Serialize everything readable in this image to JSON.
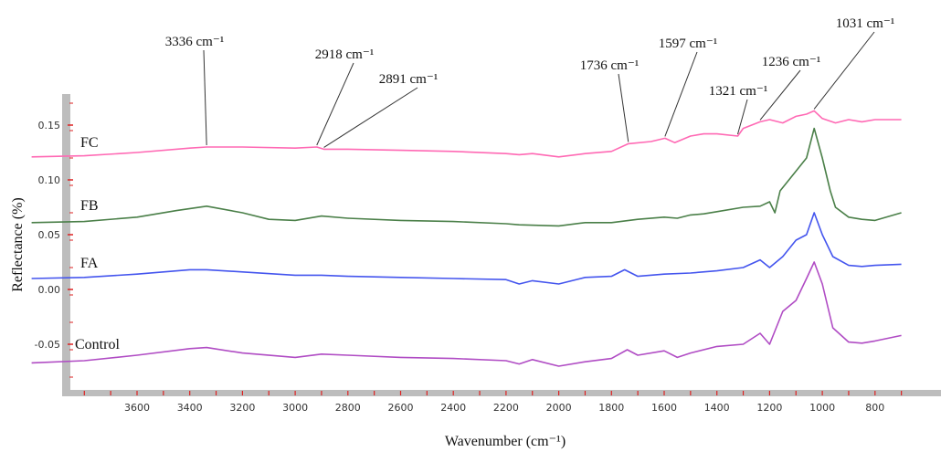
{
  "chart_data": {
    "type": "line",
    "xlabel": "Wavenumber (cm⁻¹)",
    "ylabel": "Reflectance (%)",
    "xlim": [
      4000,
      700
    ],
    "x_reversed": true,
    "ylim": [
      -0.09,
      0.19
    ],
    "xticks": [
      "3600",
      "3400",
      "3200",
      "3000",
      "2800",
      "2600",
      "2400",
      "2200",
      "2000",
      "1800",
      "1600",
      "1400",
      "1200",
      "1000",
      "800"
    ],
    "yticks": [
      "0.15",
      "0.10",
      "0.05",
      "0.00",
      "-0.05"
    ],
    "grid": false,
    "series": [
      {
        "name": "FC",
        "color": "#ff69b4",
        "points": [
          [
            4000,
            0.121
          ],
          [
            3800,
            0.122
          ],
          [
            3600,
            0.125
          ],
          [
            3400,
            0.129
          ],
          [
            3336,
            0.13
          ],
          [
            3200,
            0.13
          ],
          [
            3000,
            0.129
          ],
          [
            2918,
            0.13
          ],
          [
            2891,
            0.128
          ],
          [
            2800,
            0.128
          ],
          [
            2600,
            0.127
          ],
          [
            2400,
            0.126
          ],
          [
            2200,
            0.124
          ],
          [
            2150,
            0.123
          ],
          [
            2100,
            0.124
          ],
          [
            2000,
            0.121
          ],
          [
            1900,
            0.124
          ],
          [
            1800,
            0.126
          ],
          [
            1736,
            0.133
          ],
          [
            1650,
            0.135
          ],
          [
            1597,
            0.138
          ],
          [
            1560,
            0.134
          ],
          [
            1500,
            0.14
          ],
          [
            1450,
            0.142
          ],
          [
            1400,
            0.142
          ],
          [
            1321,
            0.14
          ],
          [
            1300,
            0.147
          ],
          [
            1236,
            0.153
          ],
          [
            1200,
            0.155
          ],
          [
            1150,
            0.152
          ],
          [
            1100,
            0.158
          ],
          [
            1060,
            0.16
          ],
          [
            1031,
            0.163
          ],
          [
            1000,
            0.156
          ],
          [
            950,
            0.152
          ],
          [
            900,
            0.155
          ],
          [
            850,
            0.153
          ],
          [
            800,
            0.155
          ],
          [
            700,
            0.155
          ]
        ]
      },
      {
        "name": "FB",
        "color": "#4a7f48",
        "points": [
          [
            4000,
            0.061
          ],
          [
            3800,
            0.062
          ],
          [
            3600,
            0.066
          ],
          [
            3450,
            0.072
          ],
          [
            3336,
            0.076
          ],
          [
            3200,
            0.07
          ],
          [
            3100,
            0.064
          ],
          [
            3000,
            0.063
          ],
          [
            2900,
            0.067
          ],
          [
            2800,
            0.065
          ],
          [
            2600,
            0.063
          ],
          [
            2400,
            0.062
          ],
          [
            2200,
            0.06
          ],
          [
            2150,
            0.059
          ],
          [
            2000,
            0.058
          ],
          [
            1900,
            0.061
          ],
          [
            1800,
            0.061
          ],
          [
            1700,
            0.064
          ],
          [
            1600,
            0.066
          ],
          [
            1550,
            0.065
          ],
          [
            1500,
            0.068
          ],
          [
            1450,
            0.069
          ],
          [
            1400,
            0.071
          ],
          [
            1300,
            0.075
          ],
          [
            1236,
            0.076
          ],
          [
            1200,
            0.08
          ],
          [
            1180,
            0.07
          ],
          [
            1160,
            0.09
          ],
          [
            1100,
            0.108
          ],
          [
            1060,
            0.12
          ],
          [
            1031,
            0.147
          ],
          [
            1000,
            0.12
          ],
          [
            970,
            0.09
          ],
          [
            950,
            0.075
          ],
          [
            900,
            0.066
          ],
          [
            850,
            0.064
          ],
          [
            800,
            0.063
          ],
          [
            700,
            0.07
          ]
        ]
      },
      {
        "name": "FA",
        "color": "#4455ee",
        "points": [
          [
            4000,
            0.01
          ],
          [
            3800,
            0.011
          ],
          [
            3600,
            0.014
          ],
          [
            3400,
            0.018
          ],
          [
            3336,
            0.018
          ],
          [
            3200,
            0.016
          ],
          [
            3000,
            0.013
          ],
          [
            2900,
            0.013
          ],
          [
            2800,
            0.012
          ],
          [
            2600,
            0.011
          ],
          [
            2400,
            0.01
          ],
          [
            2200,
            0.009
          ],
          [
            2150,
            0.005
          ],
          [
            2100,
            0.008
          ],
          [
            2000,
            0.005
          ],
          [
            1900,
            0.011
          ],
          [
            1800,
            0.012
          ],
          [
            1750,
            0.018
          ],
          [
            1700,
            0.012
          ],
          [
            1600,
            0.014
          ],
          [
            1500,
            0.015
          ],
          [
            1400,
            0.017
          ],
          [
            1300,
            0.02
          ],
          [
            1236,
            0.027
          ],
          [
            1200,
            0.02
          ],
          [
            1150,
            0.03
          ],
          [
            1100,
            0.045
          ],
          [
            1060,
            0.05
          ],
          [
            1031,
            0.07
          ],
          [
            1000,
            0.05
          ],
          [
            960,
            0.03
          ],
          [
            900,
            0.022
          ],
          [
            850,
            0.021
          ],
          [
            800,
            0.022
          ],
          [
            700,
            0.023
          ]
        ]
      },
      {
        "name": "Control",
        "color": "#b04cc4",
        "points": [
          [
            4000,
            -0.067
          ],
          [
            3800,
            -0.065
          ],
          [
            3600,
            -0.06
          ],
          [
            3400,
            -0.054
          ],
          [
            3336,
            -0.053
          ],
          [
            3200,
            -0.058
          ],
          [
            3000,
            -0.062
          ],
          [
            2900,
            -0.059
          ],
          [
            2800,
            -0.06
          ],
          [
            2600,
            -0.062
          ],
          [
            2400,
            -0.063
          ],
          [
            2200,
            -0.065
          ],
          [
            2150,
            -0.068
          ],
          [
            2100,
            -0.064
          ],
          [
            2000,
            -0.07
          ],
          [
            1900,
            -0.066
          ],
          [
            1800,
            -0.063
          ],
          [
            1740,
            -0.055
          ],
          [
            1700,
            -0.06
          ],
          [
            1600,
            -0.056
          ],
          [
            1550,
            -0.062
          ],
          [
            1500,
            -0.058
          ],
          [
            1400,
            -0.052
          ],
          [
            1300,
            -0.05
          ],
          [
            1236,
            -0.04
          ],
          [
            1200,
            -0.05
          ],
          [
            1150,
            -0.02
          ],
          [
            1100,
            -0.01
          ],
          [
            1060,
            0.01
          ],
          [
            1031,
            0.025
          ],
          [
            1000,
            0.005
          ],
          [
            960,
            -0.035
          ],
          [
            900,
            -0.048
          ],
          [
            850,
            -0.049
          ],
          [
            800,
            -0.047
          ],
          [
            700,
            -0.042
          ]
        ]
      }
    ],
    "annotations": [
      {
        "label": "3336 cm⁻¹",
        "x": 3336,
        "y": 0.13
      },
      {
        "label": "2918 cm⁻¹",
        "x": 2918,
        "y": 0.13
      },
      {
        "label": "2891 cm⁻¹",
        "x": 2891,
        "y": 0.128
      },
      {
        "label": "1736 cm⁻¹",
        "x": 1736,
        "y": 0.133
      },
      {
        "label": "1597 cm⁻¹",
        "x": 1597,
        "y": 0.138
      },
      {
        "label": "1321 cm⁻¹",
        "x": 1321,
        "y": 0.14
      },
      {
        "label": "1236 cm⁻¹",
        "x": 1236,
        "y": 0.153
      },
      {
        "label": "1031 cm⁻¹",
        "x": 1031,
        "y": 0.163
      }
    ]
  }
}
